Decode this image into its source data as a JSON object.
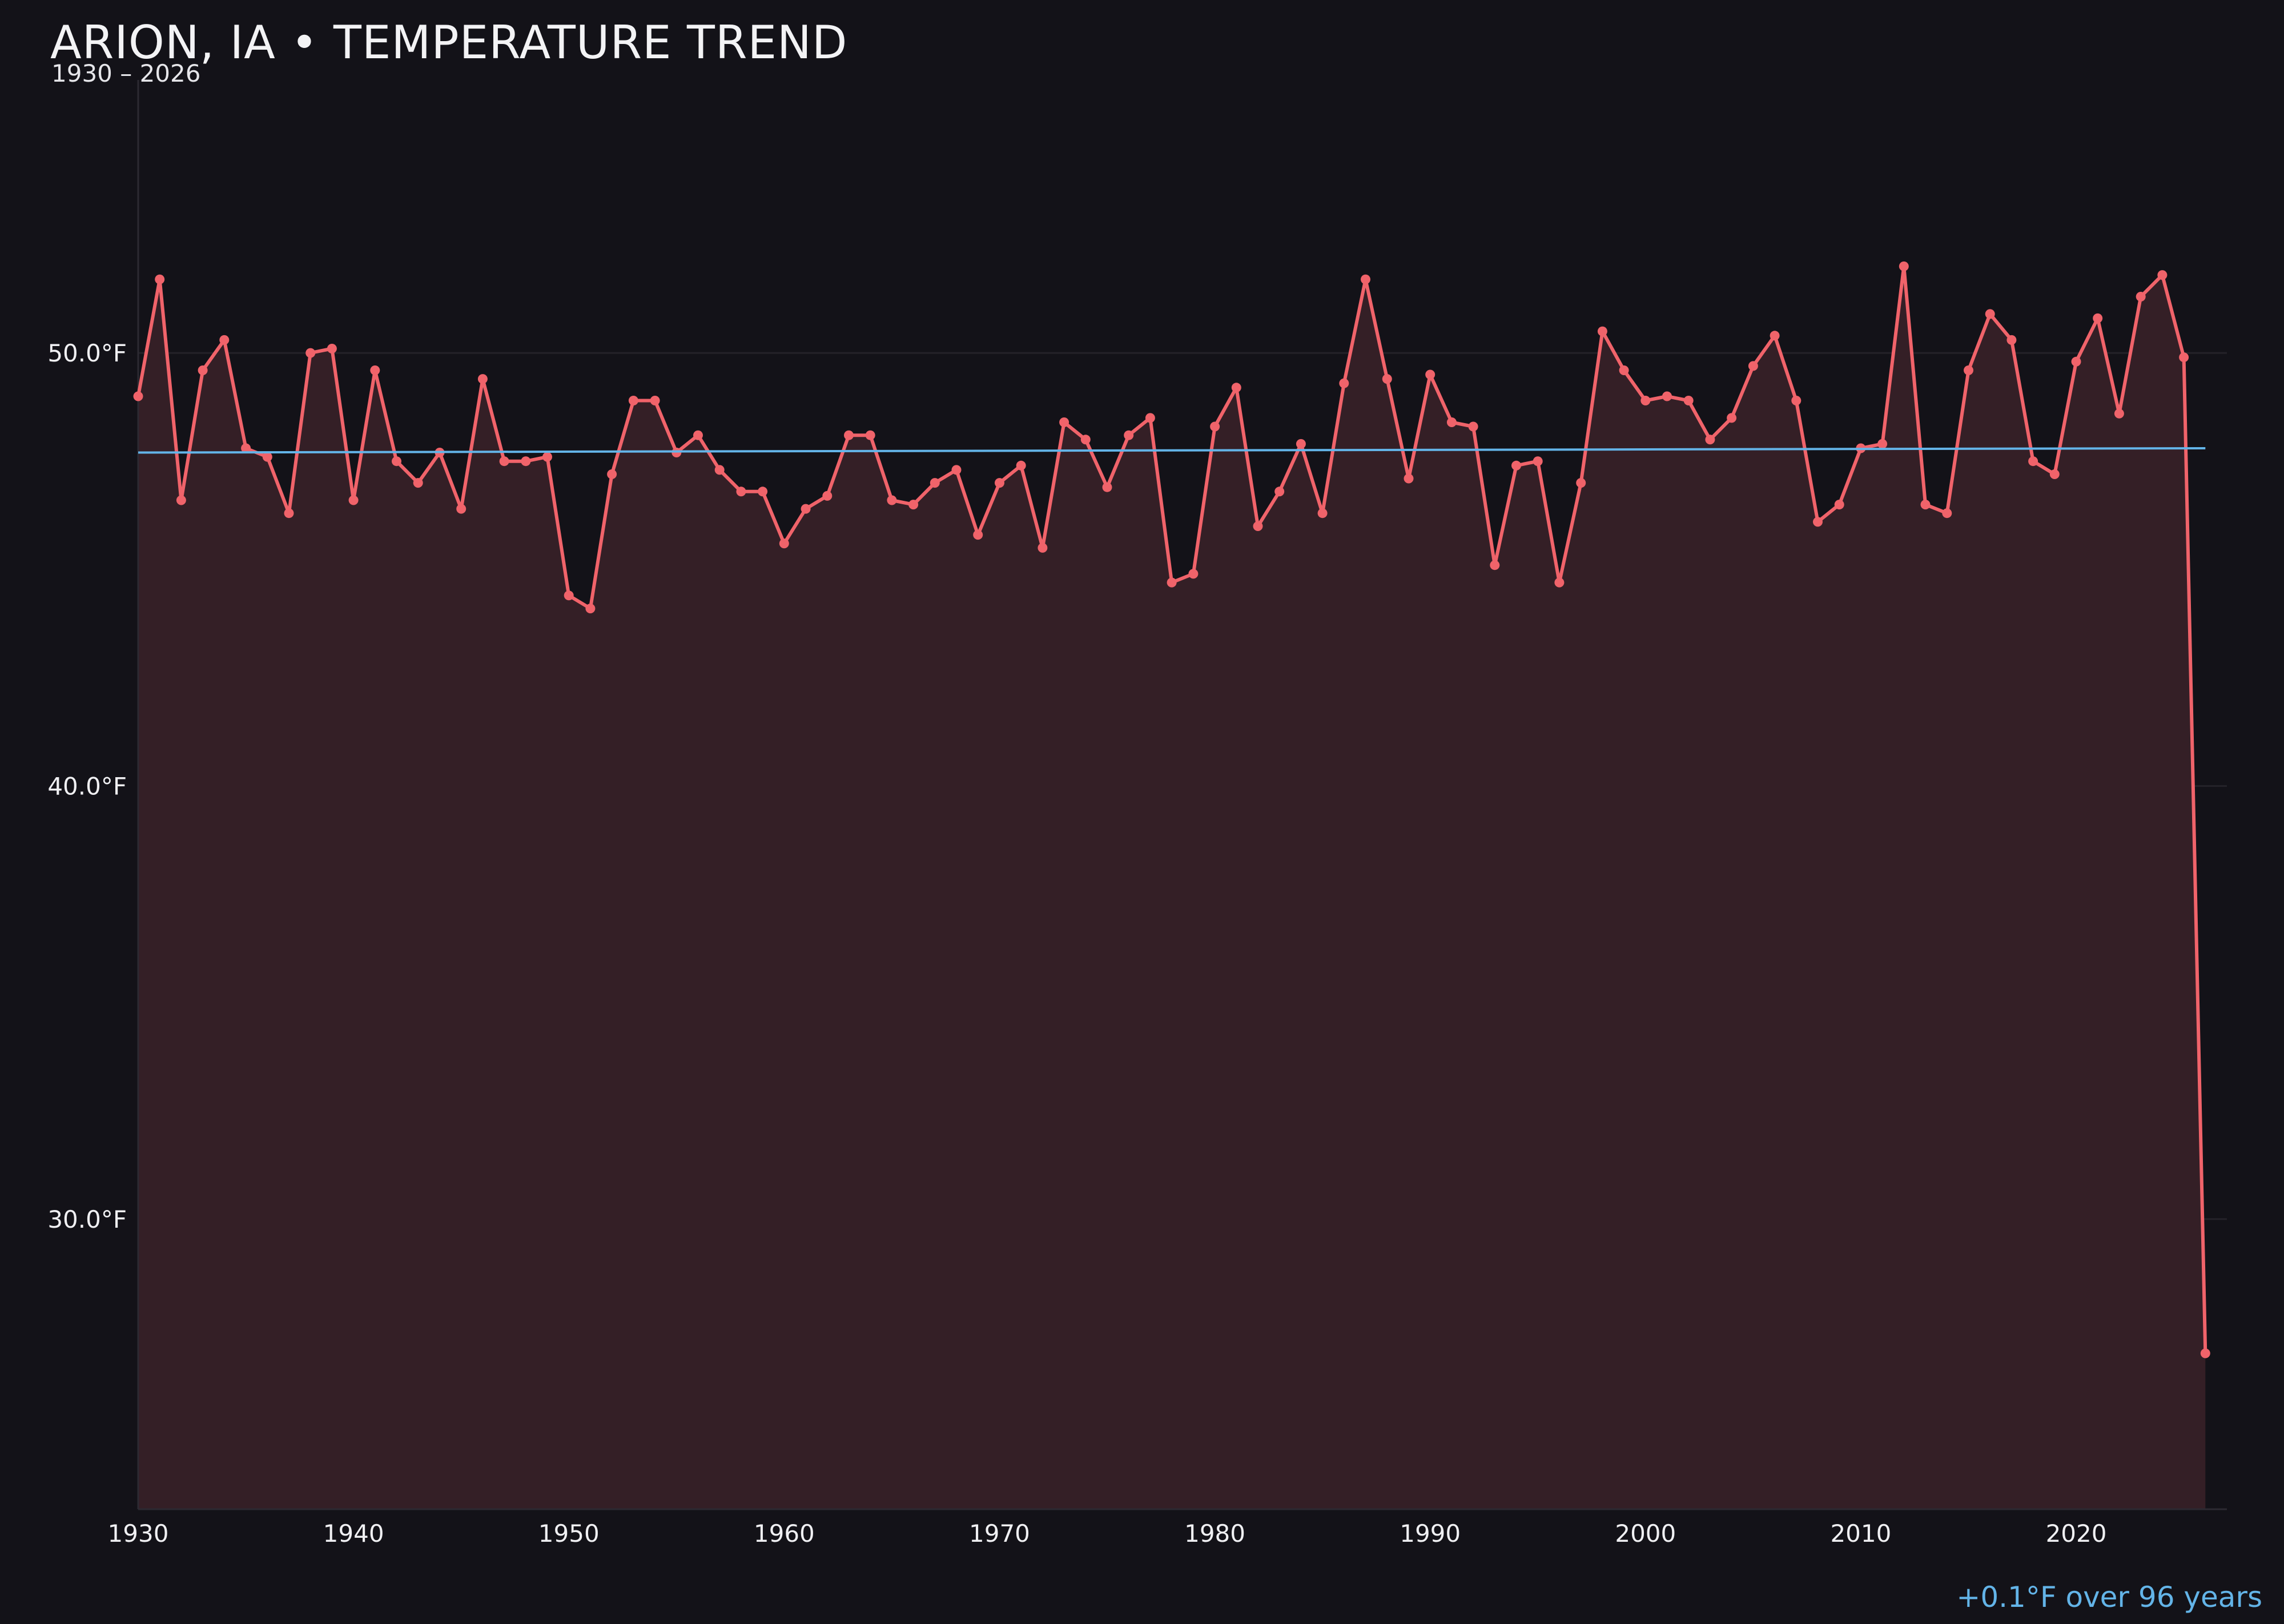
{
  "colors": {
    "background": "#131218",
    "series_line": "#f0636a",
    "area_fill": "#341f26",
    "trend_line": "#63b4e8",
    "grid": "#242229",
    "text": "#f0f0f3"
  },
  "chart_data": {
    "type": "line",
    "title": "ARION, IA • TEMPERATURE TREND",
    "subtitle": "1930 – 2026",
    "annotation": "+0.1°F over 96 years",
    "x_ticks": [
      "1930",
      "1940",
      "1950",
      "1960",
      "1970",
      "1980",
      "1990",
      "2000",
      "2010",
      "2020"
    ],
    "y_ticks": [
      {
        "value": 50,
        "label": "50.0°F"
      },
      {
        "value": 40,
        "label": "40.0°F"
      },
      {
        "value": 30,
        "label": "30.0°F"
      }
    ],
    "xlim": [
      1930,
      2027
    ],
    "ylim": [
      23.3,
      56.7
    ],
    "grid": true,
    "fill_under_series": true,
    "series": [
      {
        "x": [
          1930,
          1931,
          1932,
          1933,
          1934,
          1935,
          1936,
          1937,
          1938,
          1939,
          1940,
          1941,
          1942,
          1943,
          1944,
          1945,
          1946,
          1947,
          1948,
          1949,
          1950,
          1951,
          1952,
          1953,
          1954,
          1955,
          1956,
          1957,
          1958,
          1959,
          1960,
          1961,
          1962,
          1963,
          1964,
          1965,
          1966,
          1967,
          1968,
          1969,
          1970,
          1971,
          1972,
          1973,
          1974,
          1975,
          1976,
          1977,
          1978,
          1979,
          1980,
          1981,
          1982,
          1983,
          1984,
          1985,
          1986,
          1987,
          1988,
          1989,
          1990,
          1991,
          1992,
          1993,
          1994,
          1995,
          1996,
          1997,
          1998,
          1999,
          2000,
          2001,
          2002,
          2003,
          2004,
          2005,
          2006,
          2007,
          2008,
          2009,
          2010,
          2011,
          2012,
          2013,
          2014,
          2015,
          2016,
          2017,
          2018,
          2019,
          2020,
          2021,
          2022,
          2023,
          2024,
          2025,
          2026
        ],
        "y": [
          49.0,
          51.7,
          46.6,
          49.6,
          50.3,
          47.8,
          47.6,
          46.3,
          50.0,
          50.1,
          46.6,
          49.6,
          47.5,
          47.0,
          47.7,
          46.4,
          49.4,
          47.5,
          47.5,
          47.6,
          44.4,
          44.1,
          47.2,
          48.9,
          48.9,
          47.7,
          48.1,
          47.3,
          46.8,
          46.8,
          45.6,
          46.4,
          46.7,
          48.1,
          48.1,
          46.6,
          46.5,
          47.0,
          47.3,
          45.8,
          47.0,
          47.4,
          45.5,
          48.4,
          48.0,
          46.9,
          48.1,
          48.5,
          44.7,
          44.9,
          48.3,
          49.2,
          46.0,
          46.8,
          47.9,
          46.3,
          49.3,
          51.7,
          49.4,
          47.1,
          49.5,
          48.4,
          48.3,
          45.1,
          47.4,
          47.5,
          44.7,
          47.0,
          50.5,
          49.6,
          48.9,
          49.0,
          48.9,
          48.0,
          48.5,
          49.7,
          50.4,
          48.9,
          46.1,
          46.5,
          47.8,
          47.9,
          52.0,
          46.5,
          46.3,
          49.6,
          50.9,
          50.3,
          47.5,
          47.2,
          49.8,
          50.8,
          48.6,
          51.3,
          51.8,
          49.9,
          26.9
        ]
      }
    ],
    "trend": {
      "x": [
        1930,
        2026
      ],
      "y": [
        47.7,
        47.8
      ]
    }
  }
}
